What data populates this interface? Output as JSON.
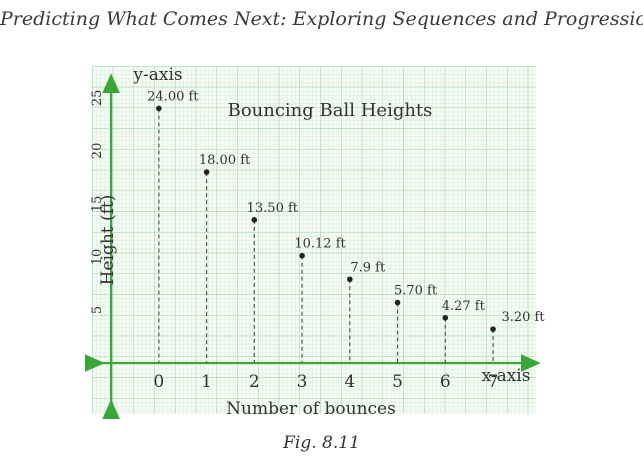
{
  "page": {
    "heading": "Predicting What Comes Next: Exploring Sequences and Progressions",
    "caption": "Fig. 8.11"
  },
  "chart_data": {
    "type": "scatter",
    "title": "Bouncing Ball Heights",
    "xlabel": "Number of bounces",
    "ylabel": "Height (ft)",
    "x_axis_name": "x-axis",
    "y_axis_name": "y-axis",
    "x": [
      0,
      1,
      2,
      3,
      4,
      5,
      6,
      7
    ],
    "y": [
      24.0,
      18.0,
      13.5,
      10.12,
      7.9,
      5.7,
      4.27,
      3.2
    ],
    "point_labels": [
      "24.00 ft",
      "18.00 ft",
      "13.50 ft",
      "10.12 ft",
      "7.9 ft",
      "5.70 ft",
      "4.27 ft",
      "3.20 ft"
    ],
    "x_ticks": [
      "0",
      "1",
      "2",
      "3",
      "4",
      "5",
      "6",
      "7"
    ],
    "y_ticks": [
      "5",
      "10",
      "15",
      "20",
      "25"
    ],
    "y_tick_values": [
      5,
      10,
      15,
      20,
      25
    ],
    "xlim": [
      -1.4,
      7.9
    ],
    "ylim": [
      -4.8,
      28
    ],
    "grid": true,
    "drop_lines": "dashed",
    "colors": {
      "grid_minor": "#cde8cd",
      "grid_major": "#9fd09f",
      "axis": "#3aa63a",
      "point": "#222222",
      "drop_line": "#555555"
    }
  }
}
